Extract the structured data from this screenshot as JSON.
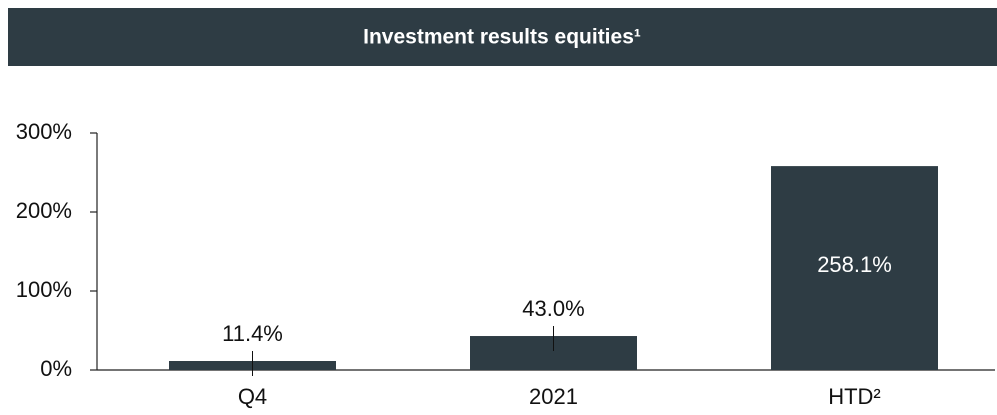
{
  "chart_data": {
    "type": "bar",
    "title": "Investment results equities¹",
    "categories": [
      "Q4",
      "2021",
      "HTD²"
    ],
    "values": [
      11.4,
      43.0,
      258.1
    ],
    "value_labels": [
      "11.4%",
      "43.0%",
      "258.1%"
    ],
    "color": "#2e3c44",
    "ylim": [
      0,
      300
    ],
    "yticks": [
      {
        "value": 0,
        "label": "0%"
      },
      {
        "value": 100,
        "label": "100%"
      },
      {
        "value": 200,
        "label": "200%"
      },
      {
        "value": 300,
        "label": "300%"
      }
    ]
  }
}
